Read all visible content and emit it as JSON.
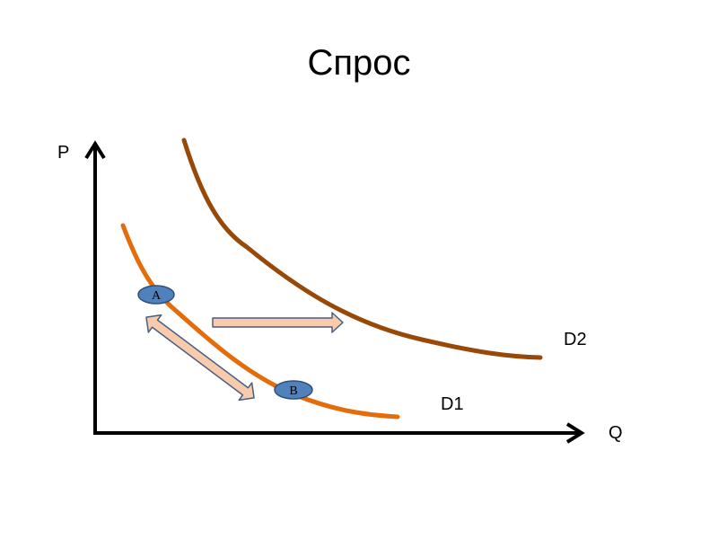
{
  "title": "Спрос",
  "axes": {
    "y_label": "P",
    "x_label": "Q"
  },
  "curves": [
    {
      "name": "D1",
      "color": "#e46c0a"
    },
    {
      "name": "D2",
      "color": "#984807"
    }
  ],
  "points": [
    {
      "label": "A",
      "color": "#4f81bd"
    },
    {
      "label": "B",
      "color": "#4f81bd"
    }
  ],
  "arrows": {
    "fill_color": "#f8cbad",
    "stroke_color": "#4a5f80"
  }
}
